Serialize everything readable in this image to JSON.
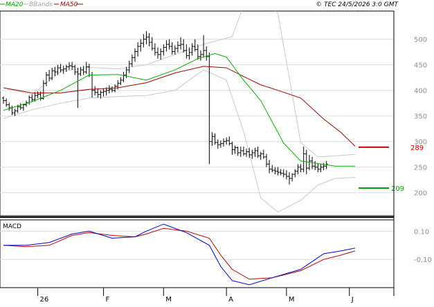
{
  "legend": [
    {
      "name": "MA20",
      "color": "#00a000"
    },
    {
      "name": "BBands",
      "color": "#b4b4b4"
    },
    {
      "name": "MA50",
      "color": "#a00000"
    }
  ],
  "copyright": "© TEC 24/5/2026 3:0 GMT",
  "macd_title": "MACD",
  "colors": {
    "ma20": "#00b000",
    "ma50": "#a00000",
    "bbands": "#c8c8c8",
    "candle": "#000000",
    "macd": "#0000c0",
    "signal": "#c00000",
    "grid": "#dcdcdc"
  },
  "chart_data": [
    {
      "type": "line",
      "panel": "price",
      "ylim": [
        155,
        555
      ],
      "y_ticks": [
        200,
        250,
        300,
        350,
        400,
        450,
        500
      ],
      "x_ticks": [
        "26",
        "F",
        "M",
        "A",
        "M",
        "J"
      ],
      "x_tick_idx": [
        12,
        35,
        56,
        78,
        99,
        121
      ],
      "n": 124,
      "ohlc": [
        [
          385,
          388,
          374,
          380
        ],
        [
          380,
          384,
          368,
          372
        ],
        [
          372,
          376,
          360,
          366
        ],
        [
          366,
          370,
          352,
          356
        ],
        [
          356,
          364,
          350,
          360
        ],
        [
          360,
          372,
          356,
          368
        ],
        [
          368,
          375,
          362,
          366
        ],
        [
          366,
          374,
          360,
          372
        ],
        [
          372,
          380,
          368,
          376
        ],
        [
          376,
          390,
          372,
          386
        ],
        [
          386,
          392,
          378,
          382
        ],
        [
          382,
          396,
          378,
          390
        ],
        [
          390,
          398,
          385,
          392
        ],
        [
          392,
          398,
          380,
          384
        ],
        [
          384,
          420,
          382,
          414
        ],
        [
          414,
          436,
          408,
          430
        ],
        [
          430,
          440,
          418,
          424
        ],
        [
          424,
          444,
          420,
          438
        ],
        [
          438,
          446,
          428,
          436
        ],
        [
          436,
          450,
          430,
          444
        ],
        [
          444,
          452,
          435,
          440
        ],
        [
          440,
          448,
          432,
          442
        ],
        [
          442,
          450,
          436,
          446
        ],
        [
          446,
          455,
          440,
          448
        ],
        [
          448,
          456,
          440,
          446
        ],
        [
          446,
          450,
          430,
          436
        ],
        [
          436,
          444,
          366,
          432
        ],
        [
          432,
          446,
          428,
          440
        ],
        [
          440,
          448,
          430,
          436
        ],
        [
          436,
          456,
          432,
          446
        ],
        [
          446,
          452,
          426,
          430
        ],
        [
          430,
          436,
          386,
          400
        ],
        [
          400,
          408,
          390,
          396
        ],
        [
          396,
          404,
          386,
          392
        ],
        [
          392,
          400,
          384,
          396
        ],
        [
          396,
          404,
          388,
          398
        ],
        [
          398,
          406,
          390,
          400
        ],
        [
          400,
          410,
          394,
          402
        ],
        [
          402,
          408,
          396,
          400
        ],
        [
          400,
          412,
          396,
          408
        ],
        [
          408,
          420,
          402,
          414
        ],
        [
          414,
          426,
          410,
          420
        ],
        [
          420,
          436,
          416,
          430
        ],
        [
          430,
          446,
          424,
          440
        ],
        [
          440,
          458,
          434,
          452
        ],
        [
          452,
          470,
          446,
          464
        ],
        [
          464,
          482,
          456,
          476
        ],
        [
          476,
          494,
          466,
          486
        ],
        [
          486,
          500,
          476,
          492
        ],
        [
          492,
          510,
          484,
          500
        ],
        [
          500,
          516,
          490,
          504
        ],
        [
          504,
          512,
          486,
          494
        ],
        [
          494,
          504,
          478,
          482
        ],
        [
          482,
          492,
          468,
          474
        ],
        [
          474,
          484,
          462,
          470
        ],
        [
          470,
          482,
          460,
          476
        ],
        [
          476,
          490,
          468,
          484
        ],
        [
          484,
          498,
          476,
          490
        ],
        [
          490,
          500,
          480,
          486
        ],
        [
          486,
          494,
          470,
          476
        ],
        [
          476,
          488,
          470,
          482
        ],
        [
          482,
          496,
          474,
          488
        ],
        [
          488,
          504,
          480,
          490
        ],
        [
          490,
          500,
          474,
          478
        ],
        [
          478,
          490,
          462,
          468
        ],
        [
          468,
          484,
          460,
          474
        ],
        [
          474,
          492,
          468,
          486
        ],
        [
          486,
          500,
          476,
          480
        ],
        [
          480,
          490,
          460,
          466
        ],
        [
          466,
          478,
          458,
          470
        ],
        [
          470,
          508,
          464,
          478
        ],
        [
          478,
          486,
          458,
          466
        ],
        [
          466,
          474,
          256,
          300
        ],
        [
          300,
          318,
          292,
          310
        ],
        [
          310,
          316,
          294,
          298
        ],
        [
          298,
          304,
          286,
          294
        ],
        [
          294,
          302,
          288,
          296
        ],
        [
          296,
          306,
          290,
          300
        ],
        [
          300,
          308,
          294,
          302
        ],
        [
          302,
          310,
          292,
          296
        ],
        [
          296,
          300,
          274,
          284
        ],
        [
          284,
          292,
          276,
          288
        ],
        [
          288,
          290,
          272,
          278
        ],
        [
          278,
          290,
          270,
          282
        ],
        [
          282,
          290,
          272,
          276
        ],
        [
          276,
          286,
          270,
          280
        ],
        [
          280,
          288,
          268,
          274
        ],
        [
          274,
          284,
          266,
          278
        ],
        [
          278,
          288,
          270,
          282
        ],
        [
          282,
          290,
          268,
          272
        ],
        [
          272,
          280,
          264,
          276
        ],
        [
          276,
          284,
          266,
          270
        ],
        [
          270,
          276,
          250,
          256
        ],
        [
          256,
          264,
          238,
          246
        ],
        [
          246,
          254,
          240,
          244
        ],
        [
          244,
          250,
          236,
          242
        ],
        [
          242,
          250,
          234,
          240
        ],
        [
          240,
          246,
          234,
          238
        ],
        [
          238,
          246,
          230,
          236
        ],
        [
          236,
          244,
          226,
          232
        ],
        [
          232,
          240,
          216,
          228
        ],
        [
          228,
          238,
          222,
          236
        ],
        [
          236,
          246,
          230,
          242
        ],
        [
          242,
          256,
          236,
          250
        ],
        [
          250,
          256,
          240,
          246
        ],
        [
          246,
          290,
          240,
          276
        ],
        [
          276,
          284,
          236,
          248
        ],
        [
          248,
          274,
          244,
          262
        ],
        [
          262,
          270,
          246,
          252
        ],
        [
          252,
          262,
          244,
          250
        ],
        [
          250,
          258,
          240,
          246
        ],
        [
          246,
          256,
          240,
          250
        ],
        [
          250,
          258,
          244,
          252
        ],
        [
          252,
          262,
          246,
          256
        ]
      ],
      "ma20": [
        [
          0,
          361
        ],
        [
          10,
          378
        ],
        [
          20,
          400
        ],
        [
          30,
          430
        ],
        [
          40,
          431
        ],
        [
          50,
          420
        ],
        [
          60,
          440
        ],
        [
          68,
          462
        ],
        [
          74,
          472
        ],
        [
          78,
          465
        ],
        [
          84,
          420
        ],
        [
          90,
          380
        ],
        [
          98,
          297
        ],
        [
          104,
          262
        ],
        [
          110,
          257
        ],
        [
          116,
          252
        ],
        [
          123,
          252
        ]
      ],
      "ma50": [
        [
          0,
          405
        ],
        [
          10,
          395
        ],
        [
          20,
          395
        ],
        [
          30,
          402
        ],
        [
          40,
          405
        ],
        [
          50,
          415
        ],
        [
          60,
          434
        ],
        [
          70,
          447
        ],
        [
          78,
          444
        ],
        [
          84,
          427
        ],
        [
          90,
          411
        ],
        [
          96,
          400
        ],
        [
          104,
          385
        ],
        [
          112,
          344
        ],
        [
          118,
          318
        ],
        [
          123,
          291
        ]
      ],
      "bb_upper": [
        [
          0,
          405
        ],
        [
          10,
          392
        ],
        [
          20,
          437
        ],
        [
          30,
          445
        ],
        [
          40,
          442
        ],
        [
          50,
          450
        ],
        [
          60,
          470
        ],
        [
          70,
          490
        ],
        [
          80,
          505
        ],
        [
          86,
          595
        ],
        [
          90,
          585
        ],
        [
          96,
          550
        ],
        [
          104,
          298
        ],
        [
          110,
          270
        ],
        [
          116,
          272
        ],
        [
          123,
          275
        ]
      ],
      "bb_lower": [
        [
          0,
          345
        ],
        [
          10,
          362
        ],
        [
          20,
          375
        ],
        [
          30,
          385
        ],
        [
          40,
          388
        ],
        [
          50,
          390
        ],
        [
          60,
          400
        ],
        [
          70,
          440
        ],
        [
          78,
          420
        ],
        [
          84,
          320
        ],
        [
          90,
          190
        ],
        [
          96,
          162
        ],
        [
          104,
          185
        ],
        [
          110,
          215
        ],
        [
          116,
          228
        ],
        [
          123,
          230
        ]
      ],
      "levels": [
        {
          "value": 289,
          "label": "289",
          "color": "#d00000"
        },
        {
          "value": 209,
          "label": "209",
          "color": "#00a000"
        }
      ]
    },
    {
      "type": "line",
      "panel": "macd",
      "title": "MACD",
      "ylim": [
        -30,
        18
      ],
      "y_ticks": [
        10,
        -10
      ],
      "y_tick_labels": [
        "0.10",
        "-0.10"
      ],
      "macd": [
        [
          0,
          0
        ],
        [
          8,
          0
        ],
        [
          16,
          2
        ],
        [
          24,
          8
        ],
        [
          30,
          10
        ],
        [
          38,
          5
        ],
        [
          46,
          6
        ],
        [
          50,
          10
        ],
        [
          56,
          15
        ],
        [
          64,
          9
        ],
        [
          72,
          0
        ],
        [
          76,
          -15
        ],
        [
          80,
          -25
        ],
        [
          86,
          -28
        ],
        [
          94,
          -23
        ],
        [
          104,
          -17
        ],
        [
          112,
          -6
        ],
        [
          118,
          -4
        ],
        [
          123,
          -2
        ]
      ],
      "signal": [
        [
          0,
          0
        ],
        [
          8,
          -1
        ],
        [
          16,
          0
        ],
        [
          24,
          7
        ],
        [
          30,
          9
        ],
        [
          38,
          7
        ],
        [
          46,
          6
        ],
        [
          50,
          8
        ],
        [
          56,
          12
        ],
        [
          64,
          10
        ],
        [
          72,
          5
        ],
        [
          76,
          -7
        ],
        [
          80,
          -17
        ],
        [
          86,
          -24
        ],
        [
          94,
          -23
        ],
        [
          104,
          -18
        ],
        [
          112,
          -10
        ],
        [
          118,
          -7
        ],
        [
          123,
          -4
        ]
      ]
    }
  ]
}
